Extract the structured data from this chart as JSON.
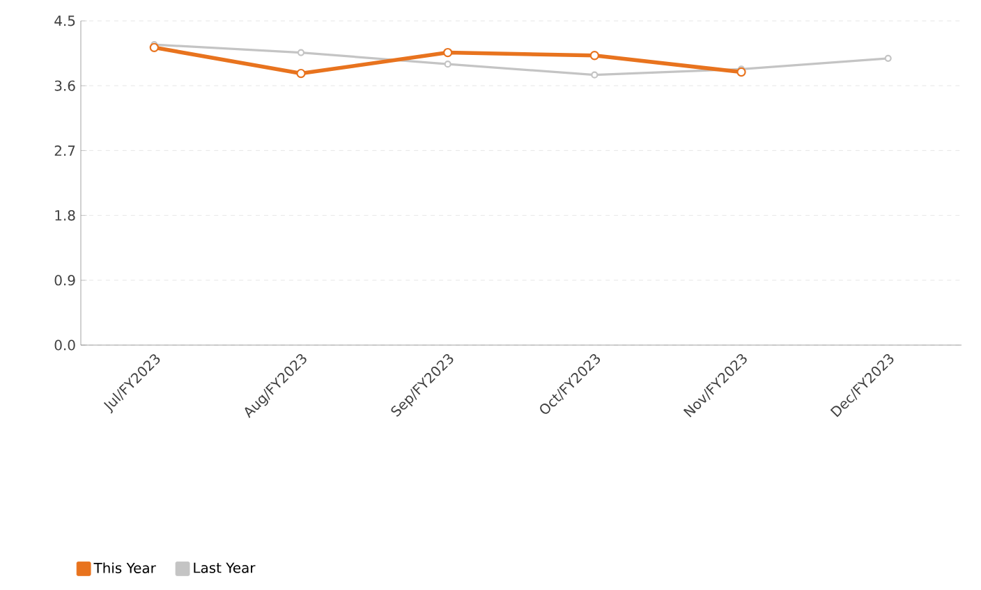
{
  "chart_data": {
    "type": "line",
    "categories": [
      "Jul/FY2023",
      "Aug/FY2023",
      "Sep/FY2023",
      "Oct/FY2023",
      "Nov/FY2023",
      "Dec/FY2023"
    ],
    "series": [
      {
        "name": "This Year",
        "color": "#e8731e",
        "values": [
          4.13,
          3.77,
          4.06,
          4.02,
          3.79,
          null
        ]
      },
      {
        "name": "Last Year",
        "color": "#c4c4c4",
        "values": [
          4.17,
          4.06,
          3.9,
          3.75,
          3.83,
          3.98
        ]
      }
    ],
    "ylim": [
      0,
      4.5
    ],
    "yticks": [
      {
        "value": 0,
        "label": "0.0"
      },
      0.9,
      1.8,
      2.7,
      3.6,
      4.5
    ],
    "grid": "y",
    "legend": "bottom left",
    "marker": "circle",
    "line_style": "solid"
  }
}
